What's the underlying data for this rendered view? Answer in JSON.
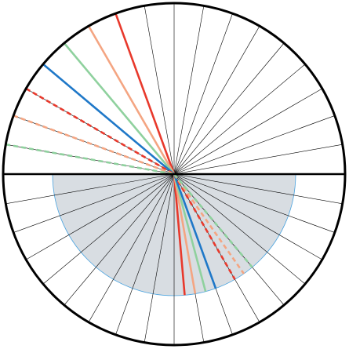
{
  "diagram": {
    "type": "refraction-disc",
    "spokes": {
      "count": 36,
      "color": "#000000"
    },
    "outline_color": "#000000",
    "interface_color": "#000000",
    "medium": {
      "fill": "#d8dde2",
      "border": "#4aa3df"
    },
    "rays": [
      {
        "name": "ray-red",
        "color": "#e8392c",
        "incident_deg_from_normal": 20,
        "refracted_deg_from_normal": 5,
        "style": "solid"
      },
      {
        "name": "ray-salmon",
        "color": "#f4a582",
        "incident_deg_from_normal": 30,
        "refracted_deg_from_normal": 10,
        "style": "solid"
      },
      {
        "name": "ray-green",
        "color": "#8fd19e",
        "incident_deg_from_normal": 40,
        "refracted_deg_from_normal": 15,
        "style": "solid"
      },
      {
        "name": "ray-blue",
        "color": "#1f78c8",
        "incident_deg_from_normal": 50,
        "refracted_deg_from_normal": 20,
        "style": "solid"
      },
      {
        "name": "ray-red-dashed",
        "color": "#e8392c",
        "incident_deg_from_normal": 60,
        "refracted_deg_from_normal": 30,
        "style": "dashed"
      },
      {
        "name": "ray-salmon-dashed",
        "color": "#f4a582",
        "incident_deg_from_normal": 70,
        "refracted_deg_from_normal": 35,
        "style": "dashed"
      },
      {
        "name": "ray-green-dashed",
        "color": "#8fd19e",
        "incident_deg_from_normal": 80,
        "refracted_deg_from_normal": 40,
        "style": "dashed"
      }
    ]
  }
}
